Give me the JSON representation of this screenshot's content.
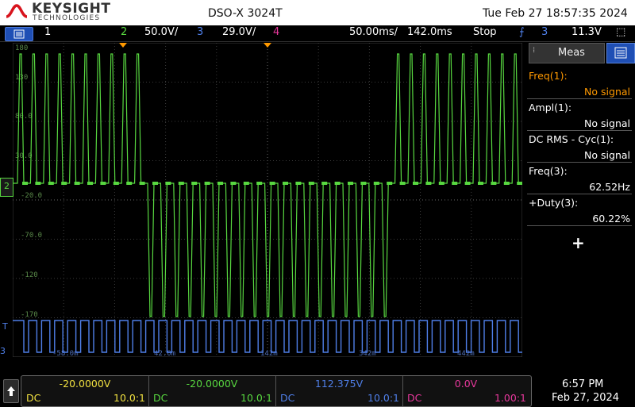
{
  "header": {
    "brand": "KEYSIGHT",
    "brand_sub": "TECHNOLOGIES",
    "model": "DSO-X 3024T",
    "datetime": "Tue Feb 27 18:57:35 2024"
  },
  "status": {
    "ch1_num": "1",
    "ch2_num": "2",
    "ch2_scale": "50.0V/",
    "ch3_num": "3",
    "ch3_scale": "29.0V/",
    "ch4_num": "4",
    "timebase": "50.00ms/",
    "delay": "142.0ms",
    "run_state": "Stop",
    "trigger_source": "3",
    "trigger_level": "11.3V"
  },
  "plot": {
    "grid_labels": [
      "180",
      "130",
      "80.0",
      "30.0",
      "-20.0",
      "-70.0",
      "-120",
      "-170"
    ],
    "ch2_marker": "2",
    "ch3_marker": "3",
    "trig_marker": "T",
    "time_labels": [
      "-58.0m",
      "42.0m",
      "142m",
      "342m",
      "442m"
    ]
  },
  "meas": {
    "tab_label": "Meas",
    "rows": [
      {
        "label": "Freq(1):",
        "value": "No signal"
      },
      {
        "label": "Ampl(1):",
        "value": "No signal"
      },
      {
        "label": "DC RMS - Cyc(1):",
        "value": "No signal"
      },
      {
        "label": "Freq(3):",
        "value": "62.52Hz"
      },
      {
        "label": "+Duty(3):",
        "value": "60.22%"
      }
    ],
    "add_label": "+"
  },
  "channels": [
    {
      "value": "-20.0000V",
      "coupling": "DC",
      "probe": "10.0:1",
      "color": "#f0e040"
    },
    {
      "value": "-20.0000V",
      "coupling": "DC",
      "probe": "10.0:1",
      "color": "#58d840"
    },
    {
      "value": "112.375V",
      "coupling": "DC",
      "probe": "10.0:1",
      "color": "#4f7fe8"
    },
    {
      "value": "0.0V",
      "coupling": "DC",
      "probe": "1.00:1",
      "color": "#e8389c"
    }
  ],
  "clock": {
    "time": "6:57 PM",
    "date": "Feb 27, 2024"
  },
  "colors": {
    "ch1": "#f0e040",
    "ch2": "#58d840",
    "ch3": "#4f7fe8",
    "ch4": "#e8389c",
    "accent": "#ff9900"
  }
}
